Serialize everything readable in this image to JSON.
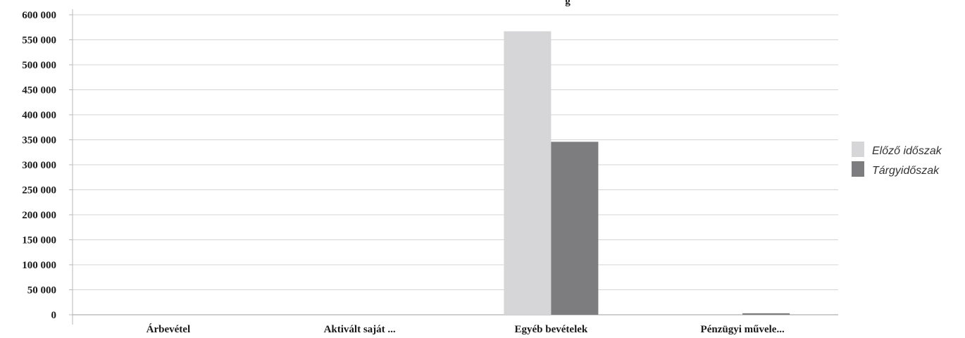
{
  "chart_data": {
    "type": "bar",
    "title_fragment": "g",
    "categories": [
      "Árbevétel",
      "Aktivált saját ...",
      "Egyéb bevételek",
      "Pénzügyi műve­le..."
    ],
    "series": [
      {
        "name": "Előző időszak",
        "values": [
          0,
          0,
          567000,
          0
        ],
        "color": "#d6d6d8"
      },
      {
        "name": "Tárgyidőszak",
        "values": [
          0,
          0,
          346000,
          3000
        ],
        "color": "#7d7d80"
      }
    ],
    "ylim": [
      0,
      600000
    ],
    "yticks": [
      0,
      50000,
      100000,
      150000,
      200000,
      250000,
      300000,
      350000,
      400000,
      450000,
      500000,
      550000,
      600000
    ],
    "ytick_labels": [
      "0",
      "50 000",
      "100 000",
      "150 000",
      "200 000",
      "250 000",
      "300 000",
      "350 000",
      "400 000",
      "450 000",
      "500 000",
      "550 000",
      "600 000"
    ],
    "grid": true,
    "legend_position": "right"
  }
}
